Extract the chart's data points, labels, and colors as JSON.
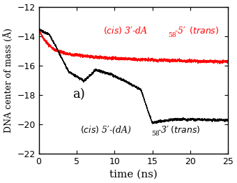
{
  "title": "",
  "xlabel": "time (ns)",
  "ylabel": "DNA center of mass (Å)",
  "xlim": [
    0,
    25
  ],
  "ylim": [
    -22,
    -12
  ],
  "yticks": [
    -22,
    -20,
    -18,
    -16,
    -14,
    -12
  ],
  "xticks": [
    0,
    5,
    10,
    15,
    20,
    25
  ],
  "label_a": "a)",
  "red_color": "#ff0000",
  "black_color": "#000000",
  "bg_color": "#ffffff",
  "seed": 42,
  "figsize": [
    3.4,
    2.62
  ],
  "dpi": 100
}
